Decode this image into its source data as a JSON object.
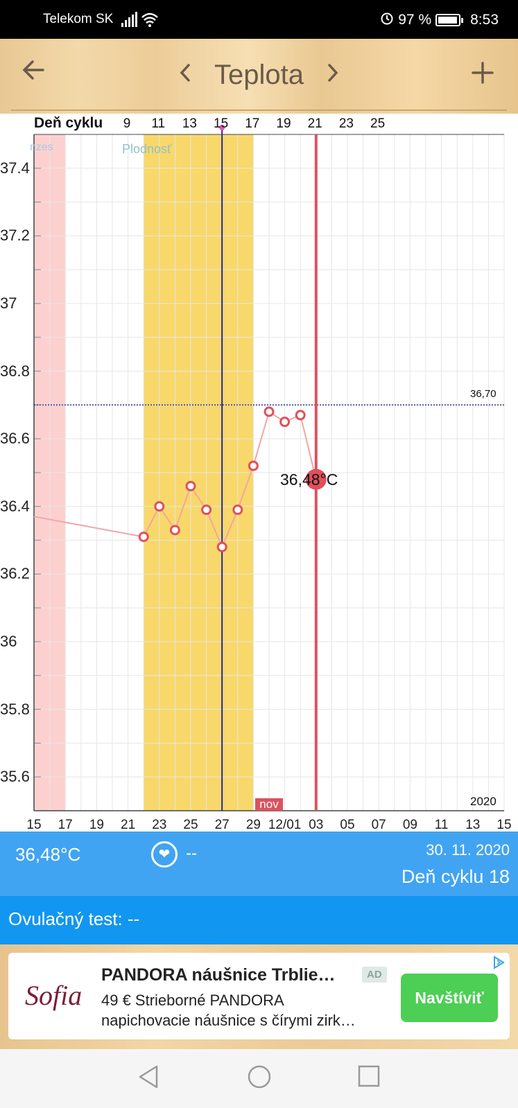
{
  "status_bar": {
    "carrier": "Telekom SK",
    "battery": "97 %",
    "time": "8:53"
  },
  "header": {
    "title": "Teplota",
    "back_icon": "arrow-left-icon",
    "prev_icon": "chevron-left-icon",
    "next_icon": "chevron-right-icon",
    "add_icon": "plus-icon"
  },
  "chart_data": {
    "type": "line",
    "cycle_header": "Deň cyklu",
    "cycle_ticks": [
      "9",
      "11",
      "13",
      "15",
      "17",
      "19",
      "21",
      "23",
      "25"
    ],
    "y_ticks": [
      "37.4",
      "37.2",
      "37",
      "36.8",
      "36.6",
      "36.4",
      "36.2",
      "36",
      "35.8",
      "35.6"
    ],
    "ylim": [
      35.5,
      37.5
    ],
    "x_ticks": [
      "15",
      "17",
      "19",
      "21",
      "23",
      "25",
      "27",
      "29",
      "12/01",
      "03",
      "05",
      "07",
      "09",
      "11",
      "13",
      "15"
    ],
    "year_label": "2020",
    "threshold_label": "36,70",
    "threshold_value": 36.7,
    "menstruation_label": "nzes",
    "fertility_label": "Plodnosť",
    "today_marker_label": "nov",
    "current_value_label": "36,48°C",
    "series": [
      {
        "x": [
          "2020-11-12",
          "2020-11-19",
          "2020-11-20",
          "2020-11-21",
          "2020-11-22",
          "2020-11-23",
          "2020-11-24",
          "2020-11-25",
          "2020-11-26",
          "2020-11-27",
          "2020-11-28",
          "2020-11-29",
          "2020-11-30"
        ],
        "values": [
          36.37,
          36.31,
          36.4,
          36.33,
          36.46,
          36.39,
          36.28,
          36.39,
          36.52,
          36.68,
          36.65,
          36.67,
          36.48
        ]
      }
    ],
    "colors": {
      "line": "#f2a6a6",
      "point": "#e0505a",
      "fertility": "#f8d86a",
      "menstruation": "#fdd0d0",
      "ovulation": "#1f2a9c",
      "today": "#d9535e",
      "threshold": "#2a2aa0"
    }
  },
  "info_bar": {
    "temperature": "36,48°C",
    "heart_icon": "heart-icon",
    "heart_value": "--",
    "date": "30. 11. 2020",
    "cycle_day": "Deň cyklu 18"
  },
  "ovulation_bar": {
    "text": "Ovulačný test: --"
  },
  "ad": {
    "logo": "Sofia",
    "title": "PANDORA náušnice Trblie…",
    "badge": "AD",
    "description_line1": "49 € Strieborné PANDORA",
    "description_line2": "napichovacie náušnice s čírymi zirk…",
    "cta": "Navštíviť"
  },
  "nav_bar": {
    "back_icon": "nav-back-icon",
    "home_icon": "nav-home-icon",
    "recents_icon": "nav-recents-icon"
  }
}
